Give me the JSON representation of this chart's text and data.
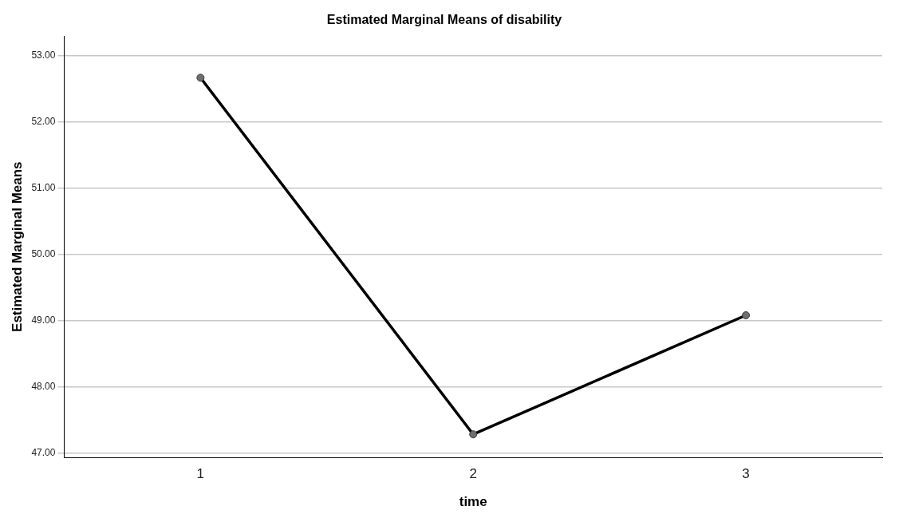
{
  "chart_data": {
    "type": "line",
    "title": "Estimated Marginal Means of disability",
    "xlabel": "time",
    "ylabel": "Estimated Marginal Means",
    "categories": [
      "1",
      "2",
      "3"
    ],
    "series": [
      {
        "color": "#000000",
        "values": [
          52.67,
          47.28,
          49.08
        ]
      }
    ],
    "ylim": [
      46.93,
      53.3
    ],
    "yticks": [
      {
        "value": 47,
        "label": "47.00"
      },
      {
        "value": 48,
        "label": "48.00"
      },
      {
        "value": 49,
        "label": "49.00"
      },
      {
        "value": 50,
        "label": "50.00"
      },
      {
        "value": 51,
        "label": "51.00"
      },
      {
        "value": 52,
        "label": "52.00"
      },
      {
        "value": 53,
        "label": "53.00"
      }
    ],
    "grid": "y",
    "legend": false,
    "marker": "circle",
    "line_style": "solid"
  }
}
